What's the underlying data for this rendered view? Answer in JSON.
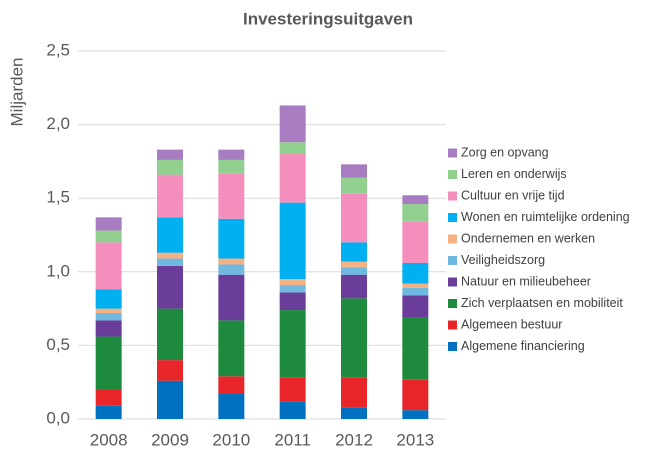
{
  "chart_data": {
    "type": "stacked_bar",
    "title": "Investeringsuitgaven",
    "y_label": "Miljarden",
    "categories": [
      "2008",
      "2009",
      "2010",
      "2011",
      "2012",
      "2013"
    ],
    "series": [
      {
        "name": "Algemene financiering",
        "color": "#0070c0",
        "values": [
          0.09,
          0.26,
          0.17,
          0.12,
          0.08,
          0.06
        ]
      },
      {
        "name": "Algemeen bestuur",
        "color": "#e8262a",
        "values": [
          0.11,
          0.14,
          0.12,
          0.16,
          0.2,
          0.21
        ]
      },
      {
        "name": "Zich verplaatsen en mobiliteit",
        "color": "#1e8a3e",
        "values": [
          0.36,
          0.35,
          0.38,
          0.46,
          0.54,
          0.42
        ]
      },
      {
        "name": "Natuur en milieubeheer",
        "color": "#6a3d9a",
        "values": [
          0.11,
          0.29,
          0.31,
          0.12,
          0.16,
          0.15
        ]
      },
      {
        "name": "Veiligheidszorg",
        "color": "#6fb8e0",
        "values": [
          0.05,
          0.05,
          0.07,
          0.05,
          0.05,
          0.05
        ]
      },
      {
        "name": "Ondernemen en werken",
        "color": "#f4b183",
        "values": [
          0.03,
          0.04,
          0.04,
          0.04,
          0.04,
          0.03
        ]
      },
      {
        "name": "Wonen en ruimtelijke ordening",
        "color": "#00b0f0",
        "values": [
          0.13,
          0.24,
          0.27,
          0.52,
          0.13,
          0.14
        ]
      },
      {
        "name": "Cultuur en vrije tijd",
        "color": "#f48fbd",
        "values": [
          0.32,
          0.29,
          0.31,
          0.33,
          0.33,
          0.28
        ]
      },
      {
        "name": "Leren en onderwijs",
        "color": "#92d090",
        "values": [
          0.08,
          0.1,
          0.09,
          0.08,
          0.11,
          0.12
        ]
      },
      {
        "name": "Zorg en opvang",
        "color": "#a87cc0",
        "values": [
          0.09,
          0.07,
          0.07,
          0.25,
          0.09,
          0.06
        ]
      }
    ],
    "ylim": [
      0,
      2.5
    ],
    "yticks": [
      {
        "value": 0,
        "label": "0,0"
      },
      {
        "value": 0.5,
        "label": "0,5"
      },
      {
        "value": 1,
        "label": "1,0"
      },
      {
        "value": 1.5,
        "label": "1,5"
      },
      {
        "value": 2,
        "label": "2,0"
      },
      {
        "value": 2.5,
        "label": "2,5"
      }
    ],
    "grid": true,
    "legend": "right"
  }
}
